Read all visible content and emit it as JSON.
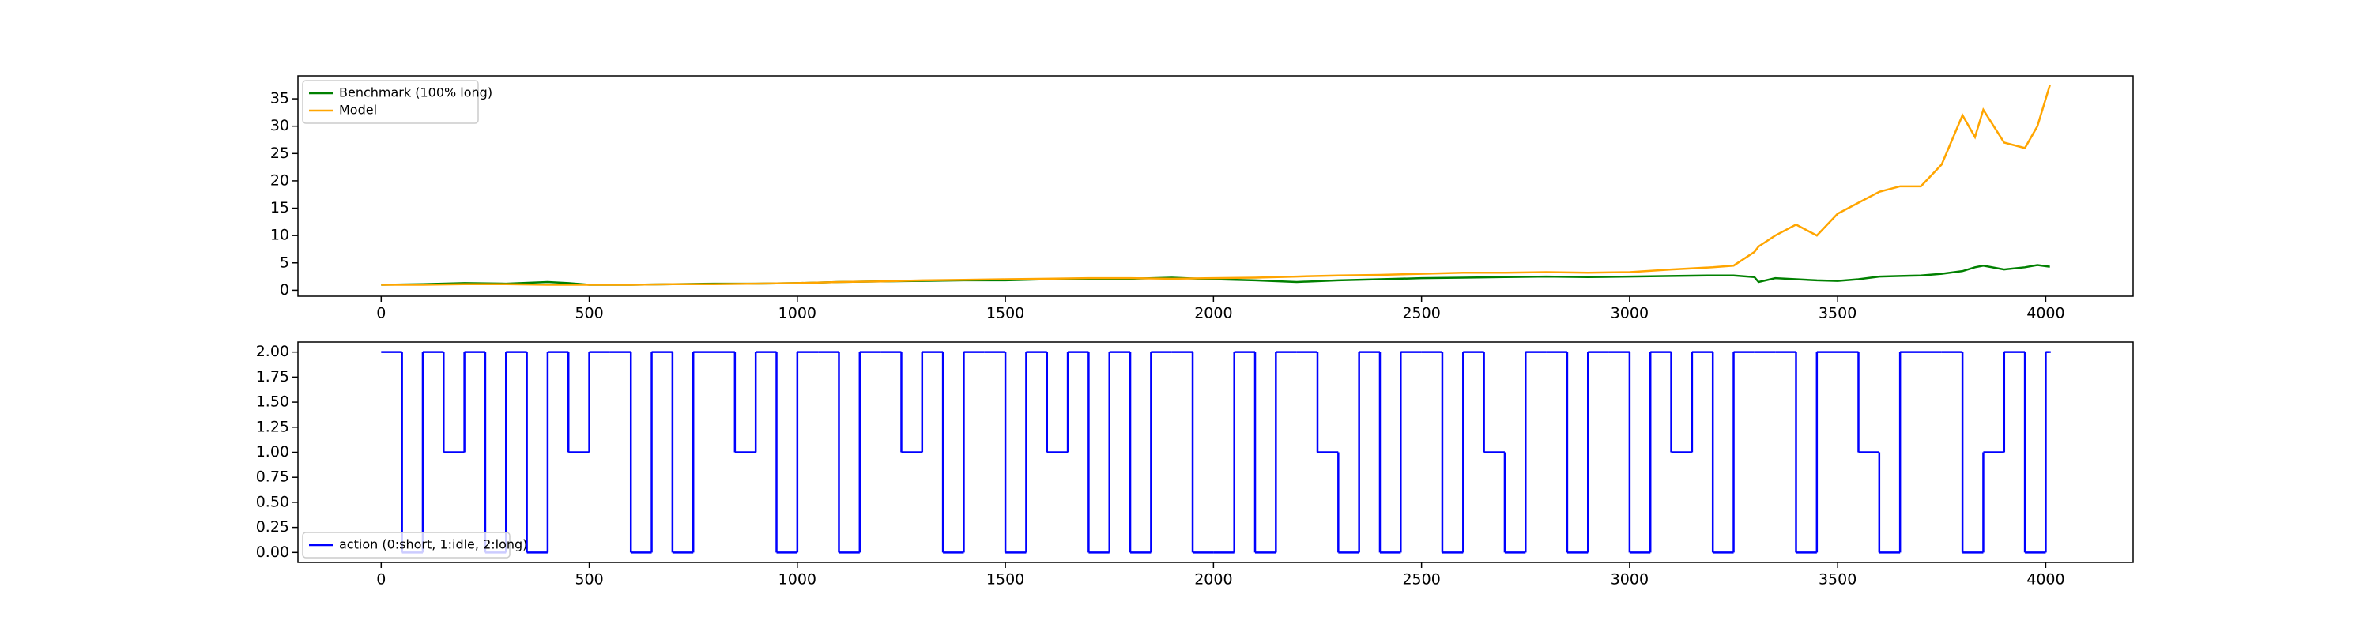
{
  "chart_data": [
    {
      "type": "line",
      "x": [
        0,
        100,
        200,
        300,
        400,
        450,
        500,
        600,
        700,
        800,
        900,
        1000,
        1100,
        1200,
        1300,
        1400,
        1500,
        1600,
        1700,
        1800,
        1900,
        2000,
        2100,
        2200,
        2300,
        2400,
        2500,
        2600,
        2700,
        2800,
        2900,
        3000,
        3100,
        3200,
        3250,
        3300,
        3310,
        3350,
        3400,
        3450,
        3500,
        3550,
        3600,
        3650,
        3700,
        3750,
        3800,
        3830,
        3850,
        3900,
        3950,
        3980,
        4010
      ],
      "series": [
        {
          "name": "Benchmark (100% long)",
          "color": "#008000",
          "values": [
            1.0,
            1.1,
            1.3,
            1.2,
            1.5,
            1.3,
            1.0,
            1.0,
            1.1,
            1.2,
            1.2,
            1.3,
            1.5,
            1.6,
            1.7,
            1.8,
            1.8,
            2.0,
            2.0,
            2.1,
            2.3,
            2.0,
            1.8,
            1.5,
            1.8,
            2.0,
            2.2,
            2.3,
            2.4,
            2.5,
            2.4,
            2.5,
            2.6,
            2.7,
            2.7,
            2.4,
            1.5,
            2.2,
            2.0,
            1.8,
            1.7,
            2.0,
            2.5,
            2.6,
            2.7,
            3.0,
            3.5,
            4.2,
            4.5,
            3.8,
            4.2,
            4.6,
            4.3
          ]
        },
        {
          "name": "Model",
          "color": "#ffa500",
          "values": [
            1.0,
            1.0,
            1.1,
            1.1,
            1.0,
            1.0,
            1.0,
            1.0,
            1.1,
            1.1,
            1.2,
            1.3,
            1.5,
            1.6,
            1.8,
            1.9,
            2.0,
            2.1,
            2.2,
            2.2,
            2.1,
            2.2,
            2.3,
            2.5,
            2.7,
            2.8,
            3.0,
            3.2,
            3.2,
            3.3,
            3.2,
            3.3,
            3.8,
            4.2,
            4.5,
            7.0,
            8.0,
            10.0,
            12.0,
            10.0,
            14.0,
            16.0,
            18.0,
            19.0,
            19.0,
            23.0,
            32.0,
            28.0,
            33.0,
            27.0,
            26.0,
            30.0,
            37.5
          ]
        }
      ],
      "xlim": [
        -200,
        4210
      ],
      "ylim": [
        -1.1,
        39.2
      ],
      "xticks": [
        0,
        500,
        1000,
        1500,
        2000,
        2500,
        3000,
        3500,
        4000
      ],
      "yticks": [
        0,
        5,
        10,
        15,
        20,
        25,
        30,
        35
      ],
      "legend": "upper left"
    },
    {
      "type": "step",
      "x": [
        0,
        50,
        100,
        150,
        200,
        250,
        300,
        350,
        400,
        450,
        500,
        550,
        600,
        650,
        700,
        750,
        800,
        850,
        900,
        950,
        1000,
        1050,
        1100,
        1150,
        1200,
        1250,
        1300,
        1350,
        1400,
        1450,
        1500,
        1550,
        1600,
        1650,
        1700,
        1750,
        1800,
        1850,
        1900,
        1950,
        2000,
        2050,
        2100,
        2150,
        2200,
        2250,
        2300,
        2350,
        2400,
        2450,
        2500,
        2550,
        2600,
        2650,
        2700,
        2750,
        2800,
        2850,
        2900,
        2950,
        3000,
        3050,
        3100,
        3150,
        3200,
        3250,
        3300,
        3350,
        3400,
        3450,
        3500,
        3550,
        3600,
        3650,
        3700,
        3750,
        3800,
        3850,
        3900,
        3950,
        4000,
        4010
      ],
      "series": [
        {
          "name": "action (0:short, 1:idle, 2:long)",
          "color": "#0000ff",
          "values": [
            2,
            0,
            2,
            1,
            2,
            0,
            2,
            0,
            2,
            1,
            2,
            2,
            0,
            2,
            0,
            2,
            2,
            1,
            2,
            0,
            2,
            2,
            0,
            2,
            2,
            1,
            2,
            0,
            2,
            2,
            0,
            2,
            1,
            2,
            0,
            2,
            0,
            2,
            2,
            0,
            0,
            2,
            0,
            2,
            2,
            1,
            0,
            2,
            0,
            2,
            2,
            0,
            2,
            1,
            0,
            2,
            2,
            0,
            2,
            2,
            0,
            2,
            1,
            2,
            0,
            2,
            2,
            2,
            0,
            2,
            2,
            1,
            0,
            2,
            2,
            2,
            0,
            1,
            2,
            0,
            2,
            2
          ]
        }
      ],
      "xlim": [
        -200,
        4210
      ],
      "ylim": [
        -0.1,
        2.1
      ],
      "xticks": [
        0,
        500,
        1000,
        1500,
        2000,
        2500,
        3000,
        3500,
        4000
      ],
      "yticks": [
        {
          "value": 0,
          "label": "0.00"
        },
        {
          "value": 0.25,
          "label": "0.25"
        },
        {
          "value": 0.5,
          "label": "0.50"
        },
        {
          "value": 0.75,
          "label": "0.75"
        },
        {
          "value": 1,
          "label": "1.00"
        },
        {
          "value": 1.25,
          "label": "1.25"
        },
        {
          "value": 1.5,
          "label": "1.50"
        },
        {
          "value": 1.75,
          "label": "1.75"
        },
        {
          "value": 2,
          "label": "2.00"
        }
      ],
      "legend": "lower left"
    }
  ]
}
